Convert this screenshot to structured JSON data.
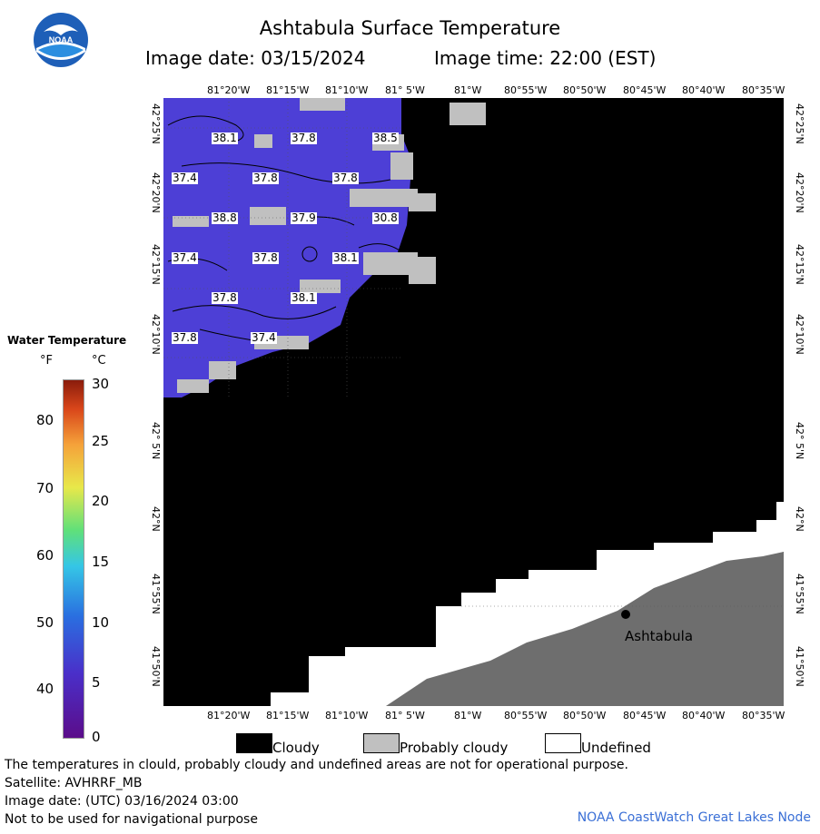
{
  "header": {
    "title": "Ashtabula Surface Temperature",
    "image_date": "Image date: 03/15/2024",
    "image_time": "Image time: 22:00 (EST)"
  },
  "map": {
    "lon_ticks": [
      "81°20'W",
      "81°15'W",
      "81°10'W",
      "81° 5'W",
      "81°W",
      "80°55'W",
      "80°50'W",
      "80°45'W",
      "80°40'W",
      "80°35'W"
    ],
    "lat_ticks": [
      "42°25'N",
      "42°20'N",
      "42°15'N",
      "42°10'N",
      "42° 5'N",
      "42°N",
      "41°55'N",
      "41°50'N"
    ],
    "city": "Ashtabula",
    "temp_labels": [
      "38.1",
      "37.8",
      "38.5",
      "37.4",
      "37.8",
      "37.8",
      "38.8",
      "37.9",
      "30.8",
      "37.4",
      "37.8",
      "38.1",
      "37.8",
      "38.1",
      "37.8",
      "37.4"
    ]
  },
  "legend": {
    "title": "Water Temperature",
    "unit_f": "°F",
    "unit_c": "°C",
    "f_labels": [
      "80",
      "70",
      "60",
      "50",
      "40"
    ],
    "c_labels": [
      "30",
      "25",
      "20",
      "15",
      "10",
      "5",
      "0"
    ],
    "cloudy": "Cloudy",
    "probably_cloudy": "Probably cloudy",
    "undefined": "Undefined"
  },
  "footer": {
    "line1": "The temperatures in clould, probably cloudy and undefined areas are not for operational purpose.",
    "line2": "Satellite: AVHRRF_MB",
    "line3": "Image date: (UTC) 03/16/2024  03:00",
    "line4": "Not to be used for navigational purpose",
    "credit": "NOAA CoastWatch Great Lakes Node"
  },
  "colors": {
    "water": "#4d3fd6",
    "cloud": "#000000",
    "probably_cloudy": "#c0c0c0",
    "undefined": "#ffffff",
    "land": "#6e6e6e",
    "credit": "#3a6fd6"
  }
}
